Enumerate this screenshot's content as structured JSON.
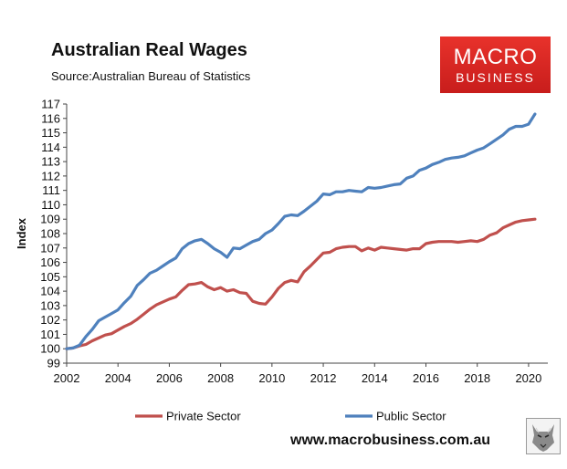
{
  "title": "Australian Real Wages",
  "subtitle": "Source:Australian Bureau of Statistics",
  "logo": {
    "line1": "MACRO",
    "line2": "BUSINESS",
    "color": "#d4211f"
  },
  "website": "www.macrobusiness.com.au",
  "wolf_icon": "wolf-logo-icon",
  "chart_data": {
    "type": "line",
    "title": "Australian Real Wages",
    "xlabel": "",
    "ylabel": "Index",
    "xlim": [
      2002,
      2020.75
    ],
    "ylim": [
      99,
      117
    ],
    "xticks": [
      2002,
      2004,
      2006,
      2008,
      2010,
      2012,
      2014,
      2016,
      2018,
      2020
    ],
    "yticks": [
      99,
      100,
      101,
      102,
      103,
      104,
      105,
      106,
      107,
      108,
      109,
      110,
      111,
      112,
      113,
      114,
      115,
      116,
      117
    ],
    "grid": false,
    "legend": "bottom",
    "series": [
      {
        "name": "Private Sector",
        "color": "#c0504d",
        "points": [
          [
            2002.0,
            100.0
          ],
          [
            2002.25,
            100.05
          ],
          [
            2002.5,
            100.2
          ],
          [
            2002.75,
            100.3
          ],
          [
            2003.0,
            100.55
          ],
          [
            2003.25,
            100.75
          ],
          [
            2003.5,
            100.95
          ],
          [
            2003.75,
            101.05
          ],
          [
            2004.0,
            101.3
          ],
          [
            2004.25,
            101.55
          ],
          [
            2004.5,
            101.75
          ],
          [
            2004.75,
            102.05
          ],
          [
            2005.0,
            102.4
          ],
          [
            2005.25,
            102.75
          ],
          [
            2005.5,
            103.05
          ],
          [
            2005.75,
            103.25
          ],
          [
            2006.0,
            103.45
          ],
          [
            2006.25,
            103.6
          ],
          [
            2006.5,
            104.05
          ],
          [
            2006.75,
            104.45
          ],
          [
            2007.0,
            104.5
          ],
          [
            2007.25,
            104.6
          ],
          [
            2007.5,
            104.3
          ],
          [
            2007.75,
            104.1
          ],
          [
            2008.0,
            104.25
          ],
          [
            2008.25,
            104.0
          ],
          [
            2008.5,
            104.1
          ],
          [
            2008.75,
            103.9
          ],
          [
            2009.0,
            103.85
          ],
          [
            2009.25,
            103.3
          ],
          [
            2009.5,
            103.15
          ],
          [
            2009.75,
            103.1
          ],
          [
            2010.0,
            103.6
          ],
          [
            2010.25,
            104.2
          ],
          [
            2010.5,
            104.6
          ],
          [
            2010.75,
            104.75
          ],
          [
            2011.0,
            104.65
          ],
          [
            2011.25,
            105.35
          ],
          [
            2011.5,
            105.75
          ],
          [
            2011.75,
            106.2
          ],
          [
            2012.0,
            106.65
          ],
          [
            2012.25,
            106.7
          ],
          [
            2012.5,
            106.95
          ],
          [
            2012.75,
            107.05
          ],
          [
            2013.0,
            107.1
          ],
          [
            2013.25,
            107.1
          ],
          [
            2013.5,
            106.8
          ],
          [
            2013.75,
            107.0
          ],
          [
            2014.0,
            106.85
          ],
          [
            2014.25,
            107.05
          ],
          [
            2014.5,
            107.0
          ],
          [
            2014.75,
            106.95
          ],
          [
            2015.0,
            106.9
          ],
          [
            2015.25,
            106.85
          ],
          [
            2015.5,
            106.95
          ],
          [
            2015.75,
            106.95
          ],
          [
            2016.0,
            107.3
          ],
          [
            2016.25,
            107.4
          ],
          [
            2016.5,
            107.45
          ],
          [
            2016.75,
            107.45
          ],
          [
            2017.0,
            107.45
          ],
          [
            2017.25,
            107.4
          ],
          [
            2017.5,
            107.45
          ],
          [
            2017.75,
            107.5
          ],
          [
            2018.0,
            107.45
          ],
          [
            2018.25,
            107.6
          ],
          [
            2018.5,
            107.9
          ],
          [
            2018.75,
            108.05
          ],
          [
            2019.0,
            108.4
          ],
          [
            2019.25,
            108.6
          ],
          [
            2019.5,
            108.8
          ],
          [
            2019.75,
            108.9
          ],
          [
            2020.0,
            108.95
          ],
          [
            2020.25,
            109.0
          ]
        ]
      },
      {
        "name": "Public Sector",
        "color": "#4f81bd",
        "points": [
          [
            2002.0,
            100.0
          ],
          [
            2002.25,
            100.05
          ],
          [
            2002.5,
            100.25
          ],
          [
            2002.75,
            100.85
          ],
          [
            2003.0,
            101.35
          ],
          [
            2003.25,
            101.95
          ],
          [
            2003.5,
            102.2
          ],
          [
            2003.75,
            102.45
          ],
          [
            2004.0,
            102.7
          ],
          [
            2004.25,
            103.2
          ],
          [
            2004.5,
            103.65
          ],
          [
            2004.75,
            104.4
          ],
          [
            2005.0,
            104.8
          ],
          [
            2005.25,
            105.25
          ],
          [
            2005.5,
            105.45
          ],
          [
            2005.75,
            105.75
          ],
          [
            2006.0,
            106.05
          ],
          [
            2006.25,
            106.3
          ],
          [
            2006.5,
            106.95
          ],
          [
            2006.75,
            107.3
          ],
          [
            2007.0,
            107.5
          ],
          [
            2007.25,
            107.6
          ],
          [
            2007.5,
            107.3
          ],
          [
            2007.75,
            106.95
          ],
          [
            2008.0,
            106.7
          ],
          [
            2008.25,
            106.35
          ],
          [
            2008.5,
            107.0
          ],
          [
            2008.75,
            106.95
          ],
          [
            2009.0,
            107.2
          ],
          [
            2009.25,
            107.45
          ],
          [
            2009.5,
            107.6
          ],
          [
            2009.75,
            108.0
          ],
          [
            2010.0,
            108.25
          ],
          [
            2010.25,
            108.7
          ],
          [
            2010.5,
            109.2
          ],
          [
            2010.75,
            109.3
          ],
          [
            2011.0,
            109.25
          ],
          [
            2011.25,
            109.55
          ],
          [
            2011.5,
            109.9
          ],
          [
            2011.75,
            110.25
          ],
          [
            2012.0,
            110.75
          ],
          [
            2012.25,
            110.7
          ],
          [
            2012.5,
            110.9
          ],
          [
            2012.75,
            110.9
          ],
          [
            2013.0,
            111.0
          ],
          [
            2013.25,
            110.95
          ],
          [
            2013.5,
            110.9
          ],
          [
            2013.75,
            111.2
          ],
          [
            2014.0,
            111.15
          ],
          [
            2014.25,
            111.2
          ],
          [
            2014.5,
            111.3
          ],
          [
            2014.75,
            111.4
          ],
          [
            2015.0,
            111.45
          ],
          [
            2015.25,
            111.85
          ],
          [
            2015.5,
            112.0
          ],
          [
            2015.75,
            112.4
          ],
          [
            2016.0,
            112.55
          ],
          [
            2016.25,
            112.8
          ],
          [
            2016.5,
            112.95
          ],
          [
            2016.75,
            113.15
          ],
          [
            2017.0,
            113.25
          ],
          [
            2017.25,
            113.3
          ],
          [
            2017.5,
            113.4
          ],
          [
            2017.75,
            113.6
          ],
          [
            2018.0,
            113.8
          ],
          [
            2018.25,
            113.95
          ],
          [
            2018.5,
            114.25
          ],
          [
            2018.75,
            114.55
          ],
          [
            2019.0,
            114.85
          ],
          [
            2019.25,
            115.25
          ],
          [
            2019.5,
            115.45
          ],
          [
            2019.75,
            115.45
          ],
          [
            2020.0,
            115.6
          ],
          [
            2020.25,
            116.3
          ]
        ]
      }
    ]
  }
}
